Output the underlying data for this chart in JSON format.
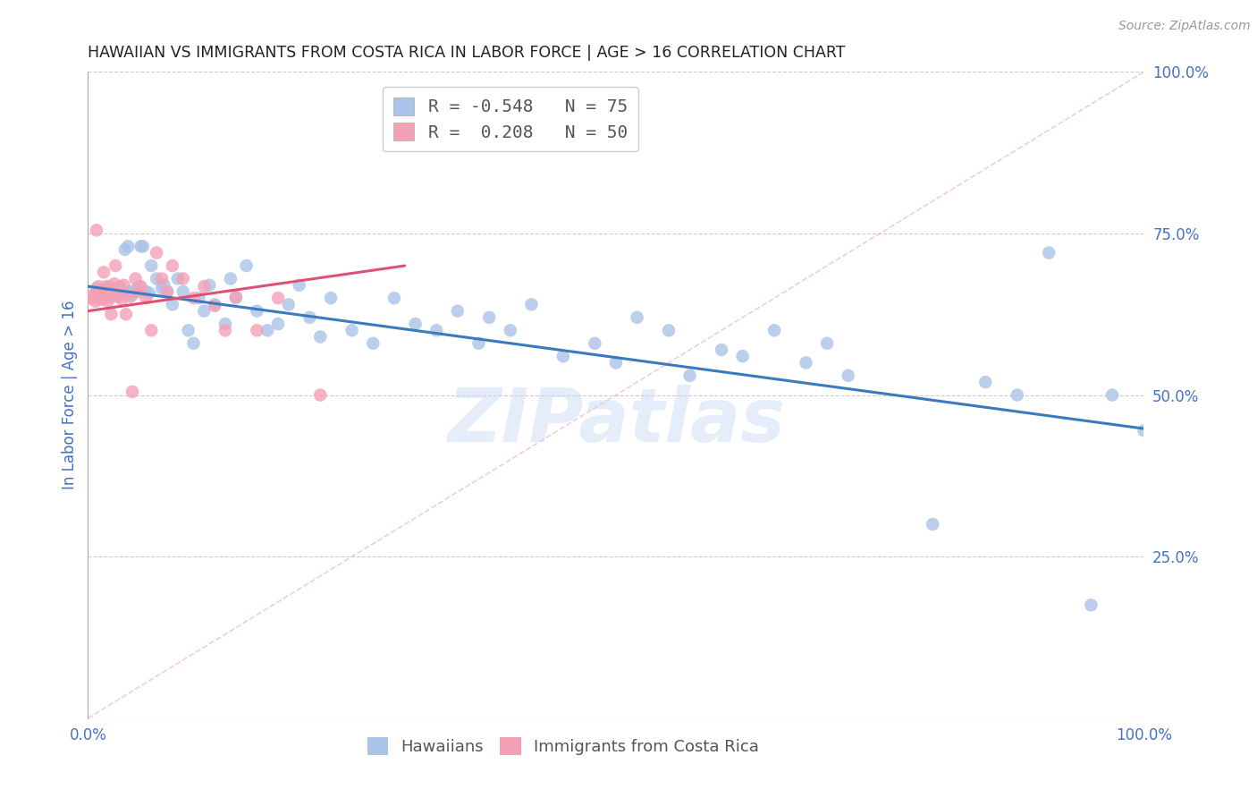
{
  "title": "HAWAIIAN VS IMMIGRANTS FROM COSTA RICA IN LABOR FORCE | AGE > 16 CORRELATION CHART",
  "source": "Source: ZipAtlas.com",
  "ylabel": "In Labor Force | Age > 16",
  "xlim": [
    0.0,
    1.0
  ],
  "ylim": [
    0.0,
    1.0
  ],
  "ytick_labels": [
    "25.0%",
    "50.0%",
    "75.0%",
    "100.0%"
  ],
  "ytick_positions": [
    0.25,
    0.5,
    0.75,
    1.0
  ],
  "hawaiians": {
    "color": "#aac4e8",
    "line_color": "#3a7abf",
    "trend_x": [
      0.0,
      1.0
    ],
    "trend_y": [
      0.668,
      0.448
    ],
    "x": [
      0.008,
      0.012,
      0.015,
      0.018,
      0.02,
      0.022,
      0.025,
      0.028,
      0.03,
      0.032,
      0.035,
      0.038,
      0.04,
      0.042,
      0.045,
      0.048,
      0.05,
      0.052,
      0.055,
      0.058,
      0.06,
      0.065,
      0.07,
      0.072,
      0.075,
      0.08,
      0.085,
      0.09,
      0.095,
      0.1,
      0.105,
      0.11,
      0.115,
      0.12,
      0.13,
      0.135,
      0.14,
      0.15,
      0.16,
      0.17,
      0.18,
      0.19,
      0.2,
      0.21,
      0.22,
      0.23,
      0.25,
      0.27,
      0.29,
      0.31,
      0.33,
      0.35,
      0.37,
      0.38,
      0.4,
      0.42,
      0.45,
      0.48,
      0.5,
      0.52,
      0.55,
      0.57,
      0.6,
      0.62,
      0.65,
      0.68,
      0.7,
      0.72,
      0.8,
      0.85,
      0.88,
      0.91,
      0.95,
      0.97,
      1.0
    ],
    "y": [
      0.665,
      0.655,
      0.66,
      0.665,
      0.668,
      0.66,
      0.662,
      0.658,
      0.665,
      0.66,
      0.725,
      0.73,
      0.66,
      0.655,
      0.662,
      0.668,
      0.73,
      0.73,
      0.66,
      0.658,
      0.7,
      0.68,
      0.665,
      0.67,
      0.66,
      0.64,
      0.68,
      0.66,
      0.6,
      0.58,
      0.65,
      0.63,
      0.67,
      0.64,
      0.61,
      0.68,
      0.65,
      0.7,
      0.63,
      0.6,
      0.61,
      0.64,
      0.67,
      0.62,
      0.59,
      0.65,
      0.6,
      0.58,
      0.65,
      0.61,
      0.6,
      0.63,
      0.58,
      0.62,
      0.6,
      0.64,
      0.56,
      0.58,
      0.55,
      0.62,
      0.6,
      0.53,
      0.57,
      0.56,
      0.6,
      0.55,
      0.58,
      0.53,
      0.3,
      0.52,
      0.5,
      0.72,
      0.175,
      0.5,
      0.445
    ]
  },
  "costa_rica": {
    "color": "#f4a0b5",
    "line_color": "#e05075",
    "trend_x": [
      0.0,
      0.3
    ],
    "trend_y": [
      0.63,
      0.7
    ],
    "x": [
      0.003,
      0.005,
      0.007,
      0.008,
      0.009,
      0.01,
      0.01,
      0.012,
      0.012,
      0.013,
      0.014,
      0.015,
      0.015,
      0.016,
      0.017,
      0.018,
      0.018,
      0.019,
      0.02,
      0.02,
      0.022,
      0.022,
      0.024,
      0.025,
      0.026,
      0.028,
      0.03,
      0.032,
      0.034,
      0.036,
      0.04,
      0.042,
      0.045,
      0.048,
      0.05,
      0.055,
      0.06,
      0.065,
      0.07,
      0.075,
      0.08,
      0.09,
      0.1,
      0.11,
      0.12,
      0.13,
      0.14,
      0.16,
      0.18,
      0.22
    ],
    "y": [
      0.65,
      0.655,
      0.645,
      0.755,
      0.66,
      0.662,
      0.668,
      0.658,
      0.66,
      0.648,
      0.652,
      0.69,
      0.658,
      0.655,
      0.668,
      0.66,
      0.665,
      0.645,
      0.652,
      0.665,
      0.658,
      0.625,
      0.665,
      0.672,
      0.7,
      0.652,
      0.668,
      0.648,
      0.67,
      0.625,
      0.652,
      0.505,
      0.68,
      0.66,
      0.668,
      0.65,
      0.6,
      0.72,
      0.68,
      0.66,
      0.7,
      0.68,
      0.65,
      0.668,
      0.638,
      0.6,
      0.652,
      0.6,
      0.65,
      0.5
    ]
  },
  "diagonal_line": {
    "x": [
      0.0,
      1.0
    ],
    "y": [
      0.0,
      1.0
    ],
    "color": "#f0b8c0",
    "linestyle": "--",
    "alpha": 0.7
  },
  "legend_entries": [
    {
      "label": "R = -0.548   N = 75",
      "color": "#aac4e8"
    },
    {
      "label": "R =  0.208   N = 50",
      "color": "#f4a0b5"
    }
  ],
  "watermark": "ZIPatlas",
  "bg_color": "#ffffff",
  "title_color": "#222222",
  "axis_label_color": "#4472c4",
  "tick_label_color": "#4472c4",
  "grid_color": "#cccccc",
  "grid_linestyle": "--"
}
